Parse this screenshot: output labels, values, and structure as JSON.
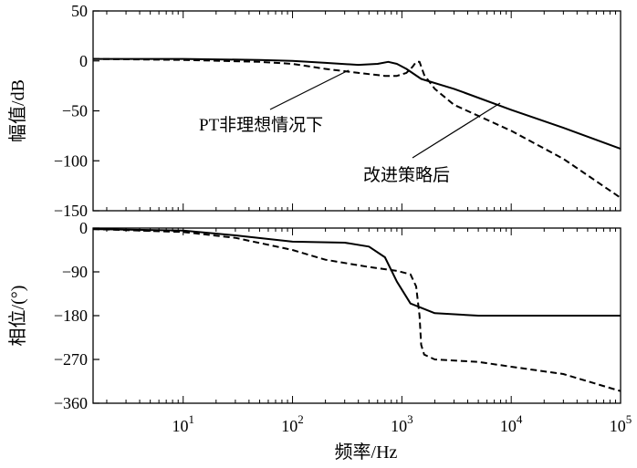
{
  "chart_data": [
    {
      "type": "line",
      "panel": "magnitude",
      "ylabel": "幅值/dB",
      "xscale": "log",
      "xlim": [
        1.5,
        100000
      ],
      "ylim": [
        -150,
        50
      ],
      "yticks": [
        50,
        0,
        -50,
        -100,
        -150
      ],
      "ytick_labels": [
        "50",
        "0",
        "−50",
        "−100",
        "−150"
      ],
      "grid": false,
      "series": [
        {
          "name": "改进策略后",
          "style": "solid",
          "x": [
            1.5,
            10,
            50,
            100,
            200,
            400,
            600,
            750,
            900,
            1100,
            1500,
            3000,
            10000,
            30000,
            100000
          ],
          "y": [
            2,
            2,
            1,
            0,
            -2,
            -4,
            -3,
            -1,
            -3,
            -8,
            -18,
            -28,
            -49,
            -67,
            -88
          ]
        },
        {
          "name": "PT非理想情况下",
          "style": "dashed",
          "x": [
            1.5,
            10,
            50,
            100,
            200,
            400,
            700,
            900,
            1100,
            1250,
            1350,
            1450,
            1600,
            2000,
            3000,
            10000,
            30000,
            100000
          ],
          "y": [
            2,
            1,
            -1,
            -3,
            -8,
            -12,
            -15,
            -15,
            -12,
            -6,
            -1,
            -1,
            -14,
            -28,
            -44,
            -70,
            -98,
            -137
          ]
        }
      ],
      "annotations": [
        "PT非理想情况下",
        "改进策略后"
      ]
    },
    {
      "type": "line",
      "panel": "phase",
      "xlabel": "频率/Hz",
      "ylabel": "相位/(°)",
      "xscale": "log",
      "xlim": [
        1.5,
        100000
      ],
      "ylim": [
        -360,
        0
      ],
      "yticks": [
        0,
        -90,
        -180,
        -270,
        -360
      ],
      "ytick_labels": [
        "0",
        "−90",
        "−180",
        "−270",
        "−360"
      ],
      "xticks": [
        10,
        100,
        1000,
        10000,
        100000
      ],
      "xtick_bases": [
        "10",
        "10",
        "10",
        "10",
        "10"
      ],
      "xtick_exps": [
        "1",
        "2",
        "3",
        "4",
        "5"
      ],
      "grid": false,
      "series": [
        {
          "name": "改进策略后",
          "style": "solid",
          "x": [
            1.5,
            10,
            30,
            100,
            300,
            500,
            700,
            900,
            1200,
            2000,
            5000,
            10000,
            100000
          ],
          "y": [
            -2,
            -5,
            -15,
            -28,
            -30,
            -38,
            -60,
            -110,
            -155,
            -175,
            -180,
            -180,
            -180
          ]
        },
        {
          "name": "PT非理想情况下",
          "style": "dashed",
          "x": [
            1.5,
            10,
            30,
            100,
            200,
            500,
            900,
            1200,
            1350,
            1450,
            1500,
            1600,
            2000,
            5000,
            10000,
            30000,
            100000
          ],
          "y": [
            -2,
            -8,
            -20,
            -45,
            -65,
            -80,
            -88,
            -95,
            -120,
            -180,
            -240,
            -260,
            -270,
            -275,
            -285,
            -300,
            -335
          ]
        }
      ]
    }
  ]
}
